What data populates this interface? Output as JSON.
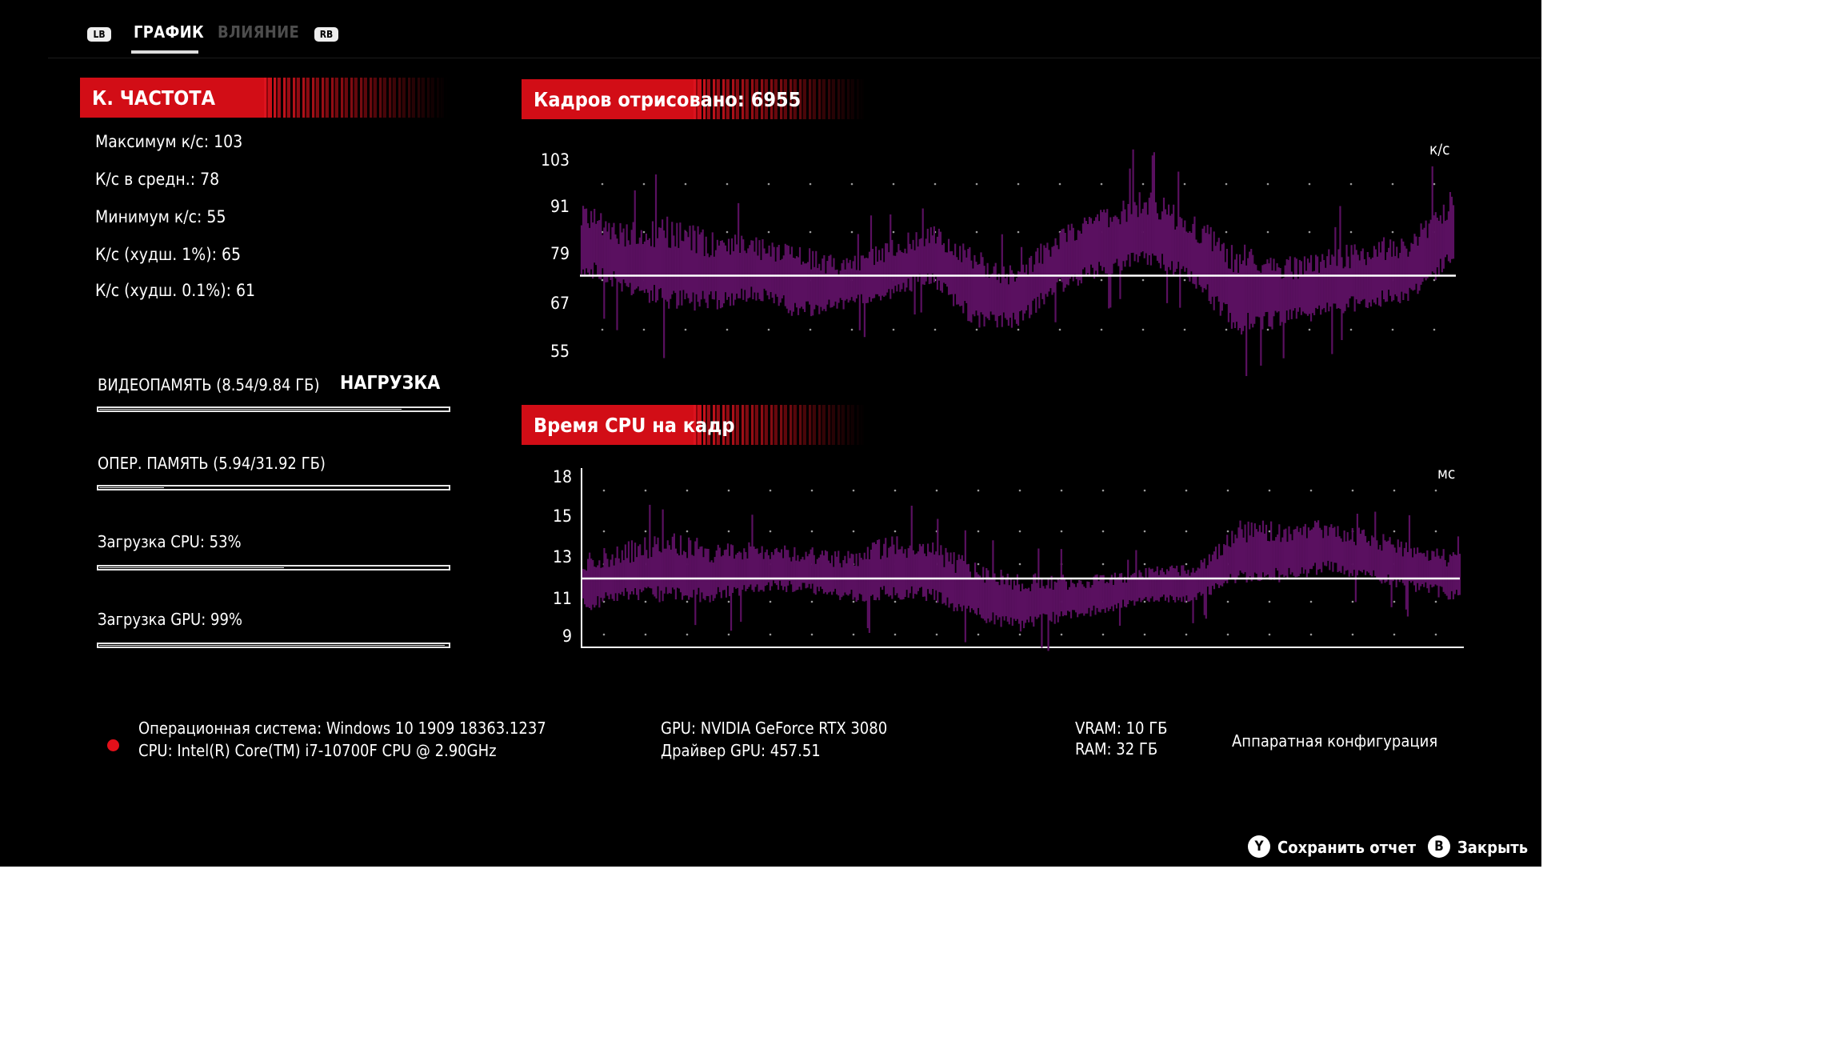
{
  "tabs": {
    "left_bumper": "LB",
    "right_bumper": "RB",
    "items": [
      {
        "label": "ГРАФИК",
        "active": true
      },
      {
        "label": "ВЛИЯНИЕ",
        "active": false
      }
    ]
  },
  "fps_section": {
    "title": "К. ЧАСТОТА",
    "stats": [
      "Максимум к/с: 103",
      "К/с в средн.: 78",
      "Минимум к/с: 55",
      "К/с (худш. 1%): 65",
      "К/с (худш. 0.1%): 61"
    ]
  },
  "load_section": {
    "title": "НАГРУЗКА",
    "metrics": [
      {
        "label": "ВИДЕОПАМЯТЬ (8.54/9.84 ГБ)",
        "fraction": 0.868
      },
      {
        "label": "ОПЕР. ПАМЯТЬ (5.94/31.92 ГБ)",
        "fraction": 0.186
      },
      {
        "label": "Загрузка CPU: 53%",
        "fraction": 0.53
      },
      {
        "label": "Загрузка GPU: 99%",
        "fraction": 0.99
      }
    ]
  },
  "frames_chart": {
    "title": "Кадров отрисовано: 6955",
    "unit": "к/с",
    "y_ticks": [
      "103",
      "91",
      "79",
      "67",
      "55"
    ],
    "average": 78,
    "ylim": [
      55,
      103
    ],
    "color": "#5a1060"
  },
  "cpu_chart": {
    "title": "Время CPU на кадр",
    "unit": "мс",
    "y_ticks": [
      "18",
      "15",
      "13",
      "11",
      "9"
    ],
    "average": 12.2,
    "color": "#5a1060"
  },
  "system_info": {
    "os": "Операционная система: Windows 10 1909 18363.1237",
    "cpu": "CPU: Intel(R) Core(TM) i7-10700F CPU @ 2.90GHz",
    "gpu": "GPU: NVIDIA GeForce RTX 3080",
    "driver": "Драйвер GPU: 457.51",
    "vram": "VRAM: 10 ГБ",
    "ram": "RAM: 32 ГБ",
    "hardware_config": "Аппаратная конфигурация"
  },
  "actions": [
    {
      "button": "Y",
      "label": "Сохранить отчет"
    },
    {
      "button": "B",
      "label": "Закрыть"
    }
  ],
  "chart_data": [
    {
      "type": "area",
      "title": "Кадров отрисовано: 6955",
      "ylabel": "к/с",
      "ylim": [
        55,
        103
      ],
      "y_ticks": [
        55,
        67,
        79,
        91,
        103
      ],
      "reference_line": 78,
      "series": [
        {
          "values_envelope": [
            [
              0,
              78,
              95
            ],
            [
              0.05,
              74,
              90
            ],
            [
              0.1,
              70,
              92
            ],
            [
              0.15,
              70,
              88
            ],
            [
              0.2,
              72,
              87
            ],
            [
              0.25,
              68,
              85
            ],
            [
              0.3,
              70,
              82
            ],
            [
              0.35,
              72,
              86
            ],
            [
              0.4,
              76,
              90
            ],
            [
              0.45,
              66,
              84
            ],
            [
              0.5,
              66,
              80
            ],
            [
              0.55,
              74,
              90
            ],
            [
              0.6,
              78,
              94
            ],
            [
              0.65,
              80,
              98
            ],
            [
              0.7,
              76,
              92
            ],
            [
              0.75,
              64,
              86
            ],
            [
              0.8,
              66,
              82
            ],
            [
              0.85,
              68,
              84
            ],
            [
              0.9,
              70,
              86
            ],
            [
              0.95,
              72,
              88
            ],
            [
              1.0,
              80,
              98
            ]
          ]
        }
      ]
    },
    {
      "type": "area",
      "title": "Время CPU на кадр",
      "ylabel": "мс",
      "y_ticks": [
        9,
        11,
        13,
        15,
        18
      ],
      "reference_line": 12.2,
      "series": [
        {
          "values_envelope": [
            [
              0,
              10.5,
              13.5
            ],
            [
              0.05,
              11,
              14
            ],
            [
              0.1,
              11,
              14.5
            ],
            [
              0.15,
              11,
              14
            ],
            [
              0.2,
              11.5,
              14
            ],
            [
              0.25,
              11.5,
              13.8
            ],
            [
              0.3,
              11,
              13.5
            ],
            [
              0.35,
              11,
              14.5
            ],
            [
              0.4,
              11,
              14
            ],
            [
              0.45,
              10,
              13
            ],
            [
              0.5,
              9.5,
              12.5
            ],
            [
              0.55,
              10,
              12.5
            ],
            [
              0.6,
              10.5,
              12.5
            ],
            [
              0.65,
              11,
              12.8
            ],
            [
              0.7,
              11,
              13
            ],
            [
              0.75,
              12,
              15
            ],
            [
              0.8,
              12,
              15
            ],
            [
              0.85,
              12.5,
              15
            ],
            [
              0.9,
              12,
              14.5
            ],
            [
              0.95,
              11.5,
              14
            ],
            [
              1.0,
              11,
              13.5
            ]
          ]
        }
      ]
    }
  ]
}
